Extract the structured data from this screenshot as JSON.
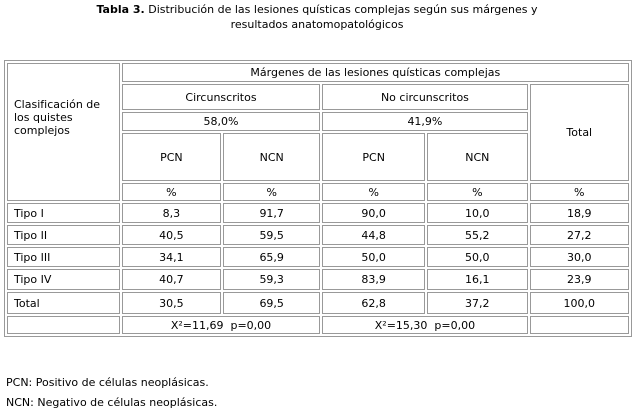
{
  "title": {
    "label": "Tabla 3.",
    "text": "Distribución de las lesiones quísticas complejas según sus márgenes y resultados anatomopatológicos"
  },
  "table": {
    "header": {
      "row_label": "Clasificación de los quistes complejos",
      "group": "Márgenes de las lesiones quísticas complejas",
      "subgroups": [
        {
          "name": "Circunscritos",
          "percent": "58,0%"
        },
        {
          "name": "No circunscritos",
          "percent": "41,9%"
        }
      ],
      "columns": [
        "PCN",
        "NCN",
        "PCN",
        "NCN"
      ],
      "total": "Total",
      "units": [
        "%",
        "%",
        "%",
        "%",
        "%"
      ]
    },
    "rows": [
      [
        "Tipo I",
        "8,3",
        "91,7",
        "90,0",
        "10,0",
        "18,9"
      ],
      [
        "Tipo II",
        "40,5",
        "59,5",
        "44,8",
        "55,2",
        "27,2"
      ],
      [
        "Tipo III",
        "34,1",
        "65,9",
        "50,0",
        "50,0",
        "30,0"
      ],
      [
        "Tipo IV",
        "40,7",
        "59,3",
        "83,9",
        "16,1",
        "23,9"
      ],
      [
        "Total",
        "30,5",
        "69,5",
        "62,8",
        "37,2",
        "100,0"
      ]
    ],
    "stats": [
      "X²=11,69  p=0,00",
      "X²=15,30  p=0,00"
    ]
  },
  "footnotes": [
    "PCN: Positivo de células neoplásicas.",
    "NCN: Negativo de células neoplásicas."
  ]
}
